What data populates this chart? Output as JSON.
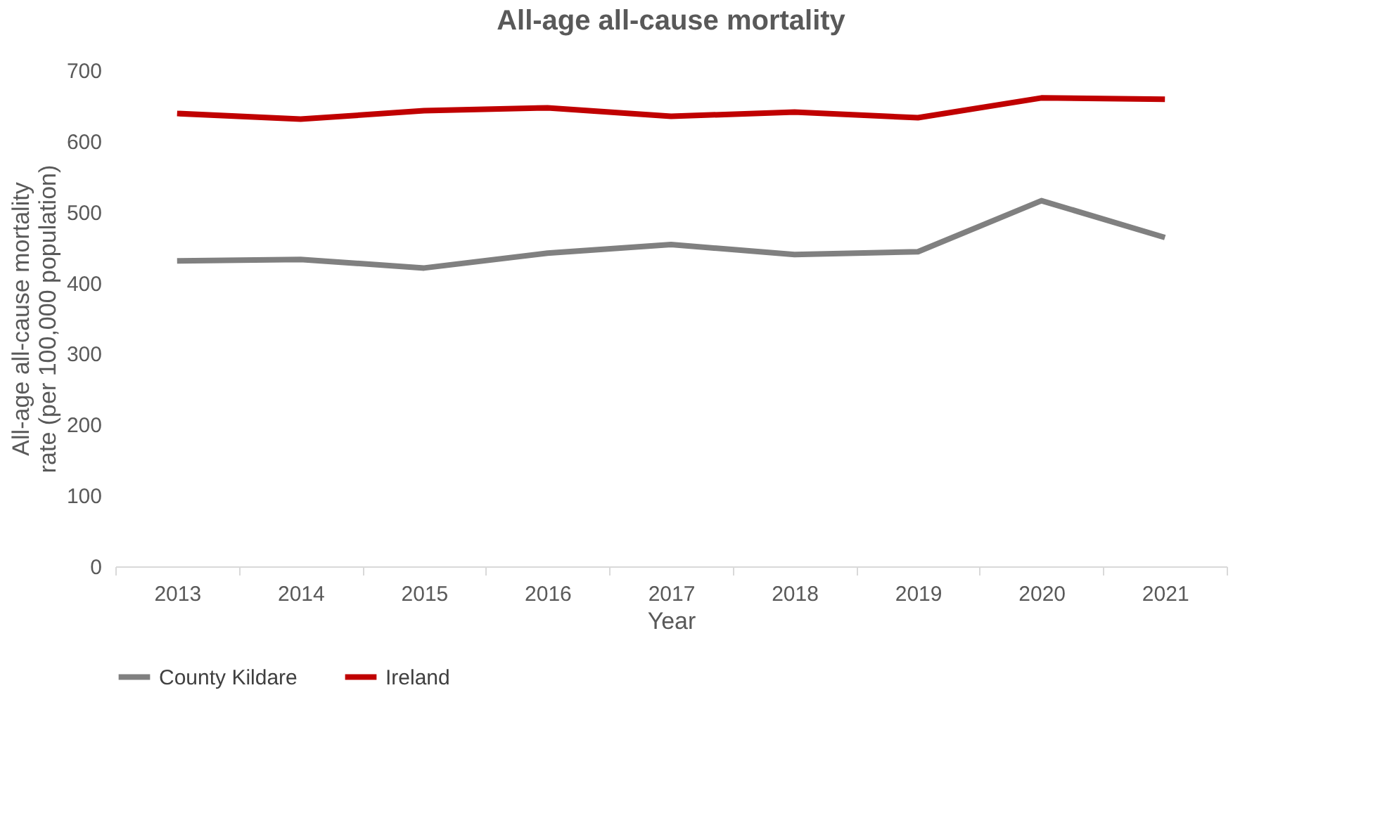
{
  "chart_data": {
    "type": "line",
    "title": "All-age all-cause mortality",
    "xlabel": "Year",
    "ylabel": "All-age all-cause mortality rate (per 100,000 population)",
    "categories": [
      "2013",
      "2014",
      "2015",
      "2016",
      "2017",
      "2018",
      "2019",
      "2020",
      "2021"
    ],
    "series": [
      {
        "name": "County Kildare",
        "color": "#808080",
        "values": [
          431,
          433,
          421,
          442,
          454,
          440,
          444,
          516,
          464
        ]
      },
      {
        "name": "Ireland",
        "color": "#c00000",
        "values": [
          639,
          631,
          643,
          647,
          635,
          641,
          633,
          661,
          659
        ]
      }
    ],
    "ylim": [
      0,
      700
    ],
    "yticks": [
      0,
      100,
      200,
      300,
      400,
      500,
      600,
      700
    ],
    "grid": false,
    "legend": "bottom",
    "marker": "none",
    "line_style": "solid"
  }
}
